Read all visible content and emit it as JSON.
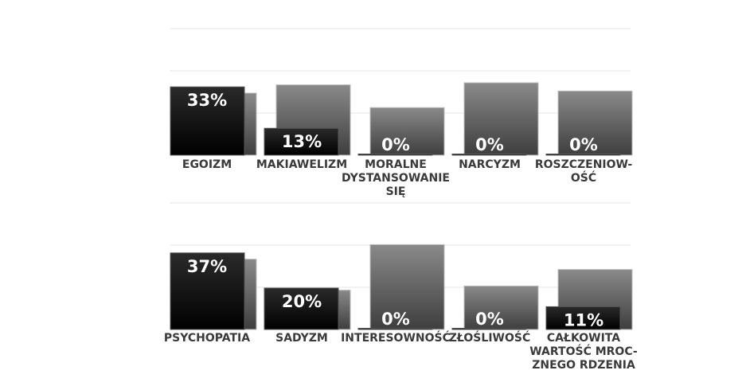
{
  "chart_data": [
    {
      "type": "bar",
      "title": "",
      "xlabel": "",
      "ylabel": "",
      "grid": true,
      "categories": [
        [
          "EGOIZM"
        ],
        [
          "MAKIAWELIZM"
        ],
        [
          "MORALNE",
          "DYSTANSOWANIE",
          "SIĘ"
        ],
        [
          "NARCYZM"
        ],
        [
          "ROSZCZENIOW-",
          "OŚĆ"
        ]
      ],
      "series": [
        {
          "values": [
            30,
            34,
            23,
            35,
            31
          ]
        },
        {
          "values": [
            33,
            13,
            0,
            0,
            0
          ]
        }
      ],
      "labels": [
        "33%",
        "13%",
        "0%",
        "0%",
        "0%"
      ],
      "colors": {
        "back": "#6e6e6e",
        "front": "#0a0a0a"
      }
    },
    {
      "type": "bar",
      "title": "",
      "xlabel": "",
      "ylabel": "",
      "grid": true,
      "categories": [
        [
          "PSYCHOPATIA"
        ],
        [
          "SADYZM"
        ],
        [
          "INTERESOWNOŚĆ"
        ],
        [
          "ZŁOŚLIWOŚĆ"
        ],
        [
          "CAŁKOWITA",
          "WARTOŚĆ MROC-",
          "ZNEGO RDZENIA"
        ]
      ],
      "series": [
        {
          "values": [
            34,
            19,
            41,
            21,
            29
          ]
        },
        {
          "values": [
            37,
            20,
            0,
            0,
            11
          ]
        }
      ],
      "labels": [
        "37%",
        "20%",
        "0%",
        "0%",
        "11%"
      ],
      "colors": {
        "back": "#6e6e6e",
        "front": "#0a0a0a"
      }
    }
  ]
}
